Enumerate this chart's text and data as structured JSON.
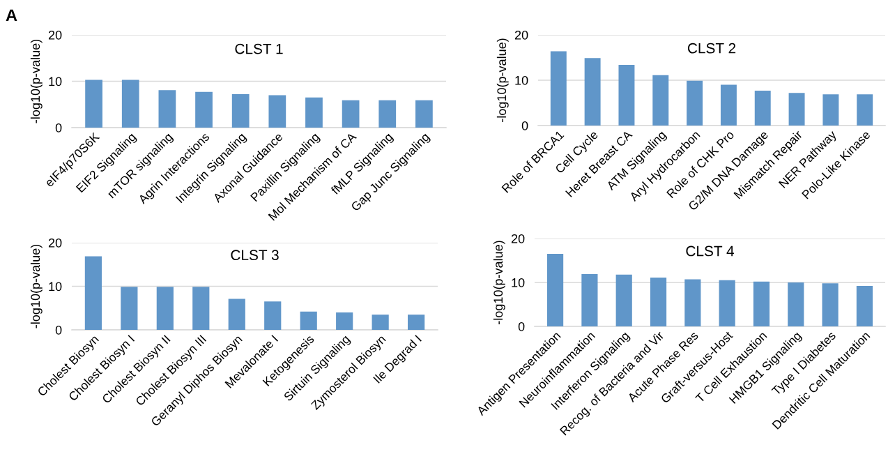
{
  "chart_data": [
    {
      "type": "bar",
      "title": "CLST 1",
      "ylabel": "-log10(p-value)",
      "annotations": [
        "A"
      ],
      "categories": [
        "eIF4/p70S6K",
        "EIF2 Signaling",
        "mTOR signaling",
        "Agrin Interactions",
        "Integrin Signaling",
        "Axonal Guidance",
        "Paxillin Signaling",
        "Mol Mechanism of CA",
        "fMLP Signaling",
        "Gap Junc Signaling"
      ],
      "values": [
        10.3,
        10.3,
        8.1,
        7.7,
        7.2,
        7.0,
        6.5,
        5.9,
        5.9,
        5.9
      ],
      "color": "#6096c9",
      "ylim": [
        0,
        20
      ],
      "yticks": [
        0,
        10,
        20
      ],
      "grid": "y"
    },
    {
      "type": "bar",
      "title": "CLST 2",
      "ylabel": "-log10(p-value)",
      "categories": [
        "Role of BRCA1",
        "Cell Cycle",
        "Heret Breast CA",
        "ATM Signaling",
        "Aryl Hydrocarbon",
        "Role of CHK Pro",
        "G2/M DNA Damage",
        "Mismatch Repair",
        "NER Pathway",
        "Polo-Like Kinase"
      ],
      "values": [
        16.4,
        14.9,
        13.4,
        11.1,
        9.9,
        9.0,
        7.7,
        7.2,
        6.9,
        6.9
      ],
      "color": "#6096c9",
      "ylim": [
        0,
        20
      ],
      "yticks": [
        0,
        10,
        20
      ],
      "grid": "y"
    },
    {
      "type": "bar",
      "title": "CLST 3",
      "ylabel": "-log10(p-value)",
      "categories": [
        "Cholest Biosyn",
        "Cholest Biosyn I",
        "Cholest Biosyn II",
        "Cholest Biosyn III",
        "Geranyl Diphos Biosyn",
        "Mevalonate I",
        "Ketogenesis",
        "Sirtuin Signaling",
        "Zymosterol Biosyn",
        "Ile Degrad I"
      ],
      "values": [
        16.9,
        9.9,
        9.9,
        9.9,
        7.1,
        6.5,
        4.2,
        4.0,
        3.5,
        3.5
      ],
      "color": "#6096c9",
      "ylim": [
        0,
        20
      ],
      "yticks": [
        0,
        10,
        20
      ],
      "grid": "y"
    },
    {
      "type": "bar",
      "title": "CLST 4",
      "ylabel": "-log10(p-value)",
      "categories": [
        "Antigen Presentation",
        "Neuroinflammation",
        "Interferon Signaling",
        "Recog. of Bacteria and Vir",
        "Acute Phase Res",
        "Graft-versus-Host",
        "T Cell Exhaustion",
        "HMGB1 Signaling",
        "Type I Diabetes",
        "Dendritic Cell Maturation"
      ],
      "values": [
        16.5,
        11.9,
        11.8,
        11.1,
        10.7,
        10.5,
        10.2,
        10.0,
        9.8,
        9.2
      ],
      "color": "#6096c9",
      "ylim": [
        0,
        20
      ],
      "yticks": [
        0,
        10,
        20
      ],
      "grid": "y"
    }
  ]
}
